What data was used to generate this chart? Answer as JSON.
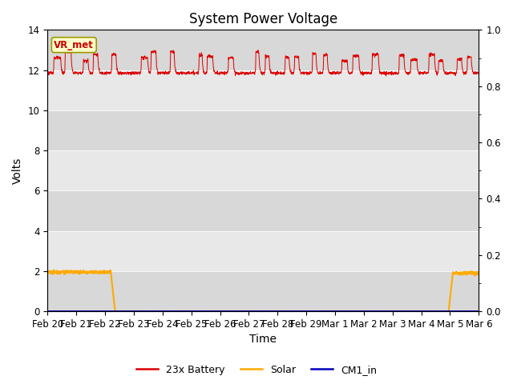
{
  "title": "System Power Voltage",
  "xlabel": "Time",
  "ylabel": "Volts",
  "background_color": "#e8e8e8",
  "ylim_left": [
    0,
    14
  ],
  "ylim_right": [
    0.0,
    1.0
  ],
  "yticks_left": [
    0,
    2,
    4,
    6,
    8,
    10,
    12,
    14
  ],
  "yticks_right": [
    0.0,
    0.2,
    0.4,
    0.6,
    0.8,
    1.0
  ],
  "xtick_labels": [
    "Feb 20",
    "Feb 21",
    "Feb 22",
    "Feb 23",
    "Feb 24",
    "Feb 25",
    "Feb 26",
    "Feb 27",
    "Feb 28",
    "Feb 29",
    "Mar 1",
    "Mar 2",
    "Mar 3",
    "Mar 4",
    "Mar 5",
    "Mar 6"
  ],
  "annotation_text": "VR_met",
  "annotation_color": "#cc0000",
  "annotation_bg": "#ffffcc",
  "annotation_border": "#999900",
  "battery_color": "#dd0000",
  "solar_color": "#ffaa00",
  "cm1_color": "#0000bb",
  "legend_labels": [
    "23x Battery",
    "Solar",
    "CM1_in"
  ],
  "title_fontsize": 12,
  "axis_label_fontsize": 10,
  "tick_fontsize": 8.5,
  "figsize": [
    6.4,
    4.8
  ],
  "dpi": 100
}
